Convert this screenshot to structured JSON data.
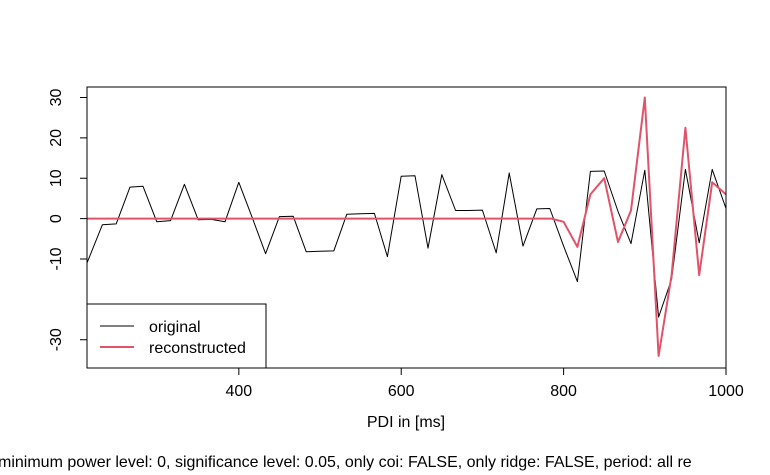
{
  "chart_data": {
    "type": "line",
    "title": "",
    "xlabel": "PDI in [ms]",
    "ylabel": "",
    "xlim": [
      213,
      1000
    ],
    "ylim": [
      -37,
      32.6
    ],
    "xticks": [
      400,
      600,
      800,
      1000
    ],
    "yticks": [
      -30,
      -10,
      0,
      10,
      20,
      30
    ],
    "grid": false,
    "legend_position": "bottom-left",
    "series": [
      {
        "name": "original",
        "color": "#000000",
        "points": [
          [
            213,
            -11.0
          ],
          [
            232,
            -1.5
          ],
          [
            249,
            -1.3
          ],
          [
            266,
            7.8
          ],
          [
            282,
            8.0
          ],
          [
            299,
            -0.8
          ],
          [
            316,
            -0.5
          ],
          [
            333,
            8.5
          ],
          [
            350,
            -0.3
          ],
          [
            366,
            -0.2
          ],
          [
            383,
            -0.8
          ],
          [
            400,
            9.0
          ],
          [
            417,
            0.0
          ],
          [
            433,
            -8.7
          ],
          [
            450,
            0.5
          ],
          [
            467,
            0.6
          ],
          [
            483,
            -8.2
          ],
          [
            500,
            -8.1
          ],
          [
            517,
            -8.0
          ],
          [
            533,
            1.1
          ],
          [
            550,
            1.2
          ],
          [
            567,
            1.3
          ],
          [
            583,
            -9.4
          ],
          [
            600,
            10.5
          ],
          [
            617,
            10.6
          ],
          [
            633,
            -7.3
          ],
          [
            650,
            10.9
          ],
          [
            667,
            2.0
          ],
          [
            683,
            2.0
          ],
          [
            700,
            2.1
          ],
          [
            717,
            -8.5
          ],
          [
            733,
            11.3
          ],
          [
            750,
            -6.8
          ],
          [
            767,
            2.4
          ],
          [
            783,
            2.5
          ],
          [
            800,
            -6.8
          ],
          [
            817,
            -15.6
          ],
          [
            833,
            11.7
          ],
          [
            850,
            11.8
          ],
          [
            867,
            1.8
          ],
          [
            883,
            -6.2
          ],
          [
            900,
            12.0
          ],
          [
            917,
            -24.4
          ],
          [
            933,
            -15.0
          ],
          [
            950,
            12.2
          ],
          [
            967,
            -6.0
          ],
          [
            983,
            12.2
          ],
          [
            1000,
            2.5
          ]
        ]
      },
      {
        "name": "reconstructed",
        "color": "#df536b",
        "points": [
          [
            213,
            0.0
          ],
          [
            300,
            0.0
          ],
          [
            400,
            0.0
          ],
          [
            500,
            0.0
          ],
          [
            600,
            0.0
          ],
          [
            700,
            0.0
          ],
          [
            785,
            0.0
          ],
          [
            800,
            -0.8
          ],
          [
            817,
            -7.0
          ],
          [
            833,
            6.0
          ],
          [
            850,
            10.0
          ],
          [
            867,
            -5.8
          ],
          [
            883,
            2.0
          ],
          [
            900,
            30.0
          ],
          [
            917,
            -34.0
          ],
          [
            933,
            -14.0
          ],
          [
            950,
            22.5
          ],
          [
            967,
            -14.0
          ],
          [
            983,
            9.0
          ],
          [
            1000,
            6.0
          ]
        ]
      }
    ]
  },
  "footer": {
    "caption": "minimum power level: 0, significance level: 0.05, only coi: FALSE, only ridge: FALSE, period: all re"
  }
}
